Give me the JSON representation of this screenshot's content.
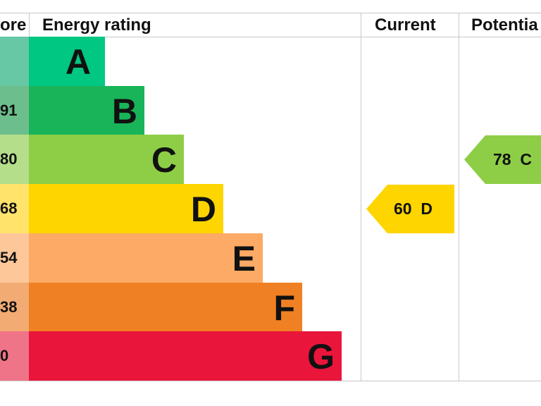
{
  "chart_data": {
    "type": "bar",
    "title": "",
    "headers": {
      "score": "ore",
      "rating": "Energy rating",
      "current": "Current",
      "potential": "Potentia"
    },
    "bands": [
      {
        "letter": "A",
        "score_label": "",
        "color": "#00c781",
        "score_color": "#66c8a4"
      },
      {
        "letter": "B",
        "score_label": "91",
        "color": "#19b459",
        "score_color": "#6cbf8c"
      },
      {
        "letter": "C",
        "score_label": "80",
        "color": "#8dce46",
        "score_color": "#b5de8a"
      },
      {
        "letter": "D",
        "score_label": "68",
        "color": "#ffd500",
        "score_color": "#ffe36b"
      },
      {
        "letter": "E",
        "score_label": "54",
        "color": "#fcaa65",
        "score_color": "#fdc79a"
      },
      {
        "letter": "F",
        "score_label": "38",
        "color": "#ef8023",
        "score_color": "#f2ab72"
      },
      {
        "letter": "G",
        "score_label": "0",
        "color": "#e9153b",
        "score_color": "#f07488"
      }
    ],
    "current": {
      "value": 60,
      "band": "D",
      "label": "60  D",
      "color": "#ffd500"
    },
    "potential": {
      "value": 78,
      "band": "C",
      "label": "78  C",
      "color": "#8dce46"
    }
  }
}
